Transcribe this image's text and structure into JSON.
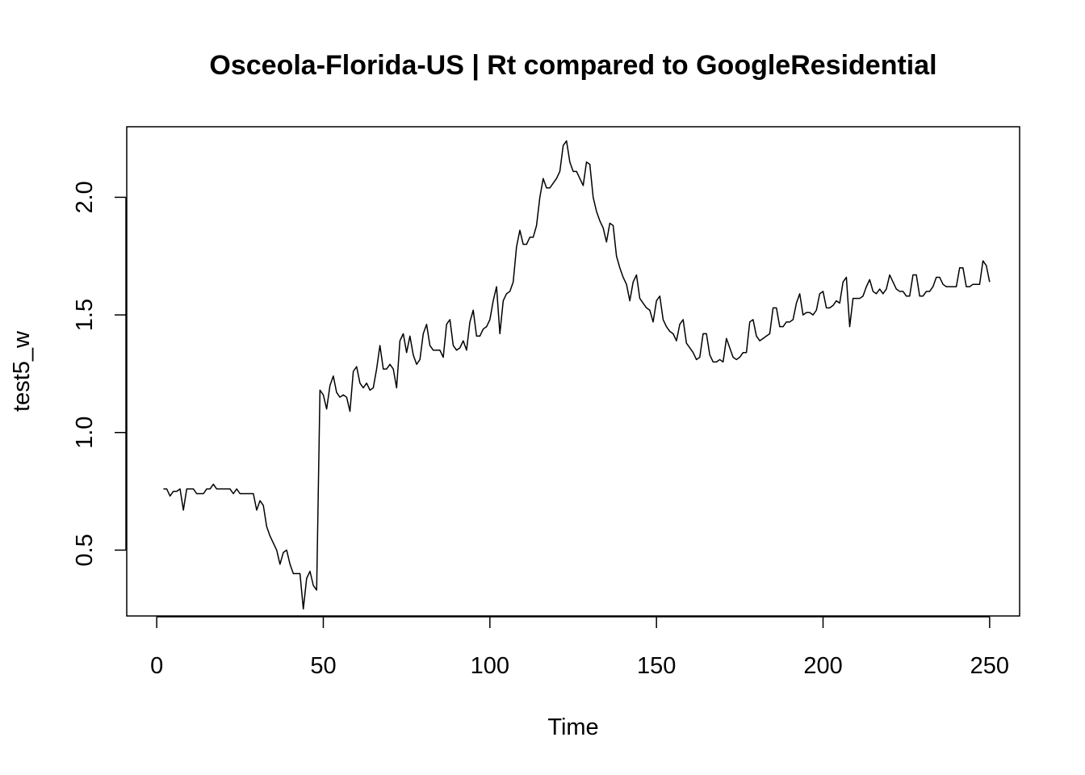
{
  "chart_data": {
    "type": "line",
    "title": "Osceola-Florida-US | Rt compared to GoogleResidential",
    "xlabel": "Time",
    "ylabel": "test5_w",
    "xlim": [
      -9,
      259
    ],
    "ylim": [
      0.22,
      2.3
    ],
    "x_ticks": [
      0,
      50,
      100,
      150,
      200,
      250
    ],
    "y_ticks": [
      0.5,
      1.0,
      1.5,
      2.0
    ],
    "x_tick_labels": [
      "0",
      "50",
      "100",
      "150",
      "200",
      "250"
    ],
    "y_tick_labels": [
      "0.5",
      "1.0",
      "1.5",
      "2.0"
    ],
    "grid": false,
    "line_color": "#000000",
    "series": [
      {
        "x_start": 2,
        "x_step": 1,
        "values": [
          0.76,
          0.76,
          0.73,
          0.75,
          0.75,
          0.76,
          0.67,
          0.76,
          0.76,
          0.76,
          0.74,
          0.74,
          0.74,
          0.76,
          0.76,
          0.78,
          0.76,
          0.76,
          0.76,
          0.76,
          0.76,
          0.74,
          0.76,
          0.74,
          0.74,
          0.74,
          0.74,
          0.74,
          0.67,
          0.71,
          0.69,
          0.6,
          0.56,
          0.53,
          0.5,
          0.44,
          0.49,
          0.5,
          0.44,
          0.4,
          0.4,
          0.4,
          0.25,
          0.38,
          0.41,
          0.35,
          0.33,
          1.18,
          1.16,
          1.1,
          1.2,
          1.24,
          1.17,
          1.15,
          1.16,
          1.15,
          1.09,
          1.26,
          1.28,
          1.21,
          1.19,
          1.21,
          1.18,
          1.19,
          1.27,
          1.37,
          1.27,
          1.27,
          1.29,
          1.27,
          1.19,
          1.39,
          1.42,
          1.34,
          1.41,
          1.33,
          1.29,
          1.31,
          1.42,
          1.46,
          1.37,
          1.35,
          1.35,
          1.35,
          1.32,
          1.46,
          1.48,
          1.37,
          1.35,
          1.36,
          1.39,
          1.35,
          1.47,
          1.52,
          1.41,
          1.41,
          1.44,
          1.45,
          1.48,
          1.56,
          1.62,
          1.42,
          1.56,
          1.59,
          1.6,
          1.64,
          1.79,
          1.86,
          1.8,
          1.8,
          1.83,
          1.83,
          1.88,
          2.0,
          2.08,
          2.04,
          2.04,
          2.06,
          2.08,
          2.11,
          2.22,
          2.24,
          2.15,
          2.11,
          2.11,
          2.08,
          2.05,
          2.15,
          2.14,
          2.0,
          1.94,
          1.9,
          1.87,
          1.81,
          1.89,
          1.88,
          1.75,
          1.7,
          1.66,
          1.63,
          1.56,
          1.64,
          1.67,
          1.57,
          1.55,
          1.53,
          1.52,
          1.47,
          1.56,
          1.58,
          1.48,
          1.45,
          1.43,
          1.42,
          1.39,
          1.46,
          1.48,
          1.38,
          1.36,
          1.34,
          1.31,
          1.32,
          1.42,
          1.42,
          1.33,
          1.3,
          1.3,
          1.31,
          1.3,
          1.4,
          1.36,
          1.32,
          1.31,
          1.32,
          1.34,
          1.34,
          1.47,
          1.48,
          1.41,
          1.39,
          1.4,
          1.41,
          1.42,
          1.53,
          1.53,
          1.45,
          1.45,
          1.47,
          1.47,
          1.48,
          1.55,
          1.59,
          1.5,
          1.51,
          1.51,
          1.5,
          1.52,
          1.59,
          1.6,
          1.53,
          1.53,
          1.54,
          1.56,
          1.55,
          1.64,
          1.66,
          1.45,
          1.57,
          1.57,
          1.57,
          1.58,
          1.62,
          1.65,
          1.6,
          1.59,
          1.61,
          1.59,
          1.61,
          1.67,
          1.64,
          1.61,
          1.6,
          1.6,
          1.58,
          1.58,
          1.67,
          1.67,
          1.58,
          1.58,
          1.6,
          1.6,
          1.62,
          1.66,
          1.66,
          1.63,
          1.62,
          1.62,
          1.62,
          1.62,
          1.7,
          1.7,
          1.62,
          1.62,
          1.63,
          1.63,
          1.63,
          1.73,
          1.71,
          1.64
        ]
      }
    ]
  }
}
